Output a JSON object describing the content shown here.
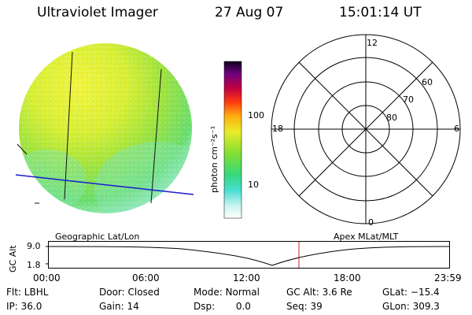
{
  "header": {
    "instrument": "Ultraviolet Imager",
    "date": "27 Aug 07",
    "time": "15:01:14 UT"
  },
  "colorbar": {
    "unit_label": "photon cm⁻²s⁻¹",
    "ticks": [
      "100",
      "10"
    ]
  },
  "polar": {
    "mlt_labels": [
      "12",
      "18",
      "6",
      "0"
    ],
    "lat_labels": [
      "60",
      "70",
      "80"
    ]
  },
  "map_labels": {
    "left": "Geographic Lat/Lon",
    "right": "Apex MLat/MLT"
  },
  "orbit": {
    "axis_label": "GC Alt",
    "y_ticks": [
      "9.0",
      "1.8"
    ],
    "x_ticks": [
      "00:00",
      "06:00",
      "12:00",
      "18:00",
      "23:59"
    ],
    "marker_color": "#cc2222"
  },
  "status": {
    "col1": [
      "Flt: LBHL",
      "IP: 36.0"
    ],
    "col2": [
      "Door: Closed",
      "Gain: 14"
    ],
    "col3": [
      "Mode: Normal",
      "Dsp:       0.0"
    ],
    "col4": [
      "GC Alt: 3.6 Re",
      "Seq: 39"
    ],
    "col5": [
      "GLat: −15.4",
      "GLon: 309.3"
    ]
  }
}
